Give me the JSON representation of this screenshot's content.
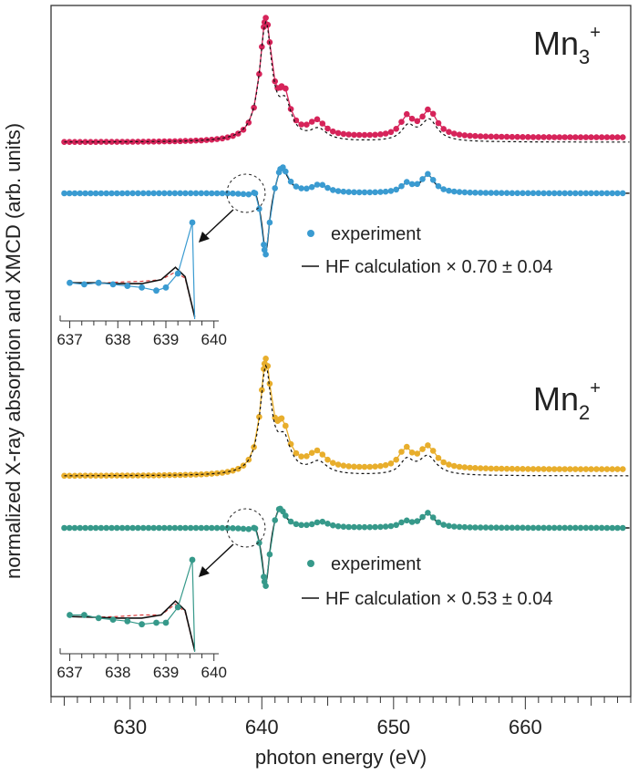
{
  "chart_data": {
    "type": "line",
    "xlabel": "photon energy (eV)",
    "ylabel": "normalized X-ray absorption and XMCD (arb. units)",
    "xlim": [
      624,
      668
    ],
    "x_ticks": [
      630,
      640,
      650,
      660
    ],
    "x_minor_step": 1,
    "colors": {
      "mn3_xas": "#d6245a",
      "mn3_xmcd": "#3a9bd1",
      "mn2_xas": "#e8ae2c",
      "mn2_xmcd": "#36998a",
      "calc": "#111111",
      "calc_alt": "#d83a3a"
    },
    "panels": [
      {
        "id": "mn3",
        "label_base": "Mn",
        "label_sub": "3",
        "label_sup": "+",
        "xas": {
          "color_key": "mn3_xas",
          "peaks": [
            {
              "x": 640.3,
              "a": 1.0,
              "w": 0.55
            },
            {
              "x": 641.7,
              "a": 0.3,
              "w": 0.5
            },
            {
              "x": 644.2,
              "a": 0.12,
              "w": 0.7
            },
            {
              "x": 651.0,
              "a": 0.16,
              "w": 0.55
            },
            {
              "x": 652.7,
              "a": 0.22,
              "w": 0.7
            }
          ],
          "step": {
            "edge": 640.8,
            "height": 0.04
          },
          "calc_peaks": [
            {
              "x": 640.3,
              "a": 0.98,
              "w": 0.58
            },
            {
              "x": 641.8,
              "a": 0.25,
              "w": 0.55
            },
            {
              "x": 644.3,
              "a": 0.09,
              "w": 0.75
            },
            {
              "x": 651.1,
              "a": 0.12,
              "w": 0.6
            },
            {
              "x": 652.7,
              "a": 0.18,
              "w": 0.75
            }
          ]
        },
        "xmcd": {
          "color_key": "mn3_xmcd",
          "peaks": [
            {
              "x": 639.5,
              "a": 0.12,
              "w": 0.25
            },
            {
              "x": 640.3,
              "a": -1.0,
              "w": 0.35
            },
            {
              "x": 641.5,
              "a": 0.45,
              "w": 0.6
            },
            {
              "x": 644.4,
              "a": 0.12,
              "w": 0.7
            },
            {
              "x": 651.0,
              "a": 0.13,
              "w": 0.5
            },
            {
              "x": 652.6,
              "a": 0.27,
              "w": 0.6
            }
          ],
          "calc_scale_text": "HF calculation × 0.70 ± 0.04",
          "legend_exp": "experiment",
          "inset_points": [
            {
              "x": 637.0,
              "y": 0.04
            },
            {
              "x": 637.3,
              "y": 0.03
            },
            {
              "x": 637.6,
              "y": 0.04
            },
            {
              "x": 637.9,
              "y": 0.03
            },
            {
              "x": 638.2,
              "y": 0.02
            },
            {
              "x": 638.5,
              "y": 0.01
            },
            {
              "x": 638.8,
              "y": -0.01
            },
            {
              "x": 639.0,
              "y": 0.01
            },
            {
              "x": 639.25,
              "y": 0.1
            },
            {
              "x": 639.55,
              "y": 0.45
            }
          ],
          "inset_calc": [
            {
              "x": 637.0,
              "y": 0.04
            },
            {
              "x": 637.5,
              "y": 0.04
            },
            {
              "x": 638.0,
              "y": 0.035
            },
            {
              "x": 638.5,
              "y": 0.035
            },
            {
              "x": 638.9,
              "y": 0.06
            },
            {
              "x": 639.2,
              "y": 0.14
            },
            {
              "x": 639.4,
              "y": 0.08
            },
            {
              "x": 639.6,
              "y": -0.18
            }
          ],
          "inset_calc_alt": [
            {
              "x": 637.0,
              "y": 0.04
            },
            {
              "x": 637.5,
              "y": 0.035
            },
            {
              "x": 638.0,
              "y": 0.045
            },
            {
              "x": 638.5,
              "y": 0.05
            },
            {
              "x": 638.9,
              "y": 0.06
            },
            {
              "x": 639.2,
              "y": 0.11
            },
            {
              "x": 639.4,
              "y": 0.07
            },
            {
              "x": 639.6,
              "y": -0.18
            }
          ]
        }
      },
      {
        "id": "mn2",
        "label_base": "Mn",
        "label_sub": "2",
        "label_sup": "+",
        "xas": {
          "color_key": "mn2_xas",
          "peaks": [
            {
              "x": 640.3,
              "a": 1.0,
              "w": 0.5
            },
            {
              "x": 641.6,
              "a": 0.33,
              "w": 0.55
            },
            {
              "x": 644.2,
              "a": 0.14,
              "w": 0.75
            },
            {
              "x": 650.9,
              "a": 0.17,
              "w": 0.55
            },
            {
              "x": 652.6,
              "a": 0.2,
              "w": 0.75
            }
          ],
          "step": {
            "edge": 640.8,
            "height": 0.06
          },
          "calc_peaks": [
            {
              "x": 640.3,
              "a": 0.96,
              "w": 0.52
            },
            {
              "x": 641.7,
              "a": 0.27,
              "w": 0.6
            },
            {
              "x": 644.3,
              "a": 0.11,
              "w": 0.8
            },
            {
              "x": 651.0,
              "a": 0.13,
              "w": 0.6
            },
            {
              "x": 652.6,
              "a": 0.17,
              "w": 0.8
            }
          ]
        },
        "xmcd": {
          "color_key": "mn2_xmcd",
          "peaks": [
            {
              "x": 639.5,
              "a": 0.1,
              "w": 0.25
            },
            {
              "x": 640.3,
              "a": -0.9,
              "w": 0.35
            },
            {
              "x": 641.3,
              "a": 0.35,
              "w": 0.6
            },
            {
              "x": 644.5,
              "a": 0.08,
              "w": 0.7
            },
            {
              "x": 650.9,
              "a": 0.08,
              "w": 0.5
            },
            {
              "x": 652.6,
              "a": 0.2,
              "w": 0.6
            }
          ],
          "calc_scale_text": "HF calculation × 0.53 ± 0.04",
          "legend_exp": "experiment",
          "inset_points": [
            {
              "x": 637.0,
              "y": 0.05
            },
            {
              "x": 637.3,
              "y": 0.05
            },
            {
              "x": 637.6,
              "y": 0.03
            },
            {
              "x": 637.9,
              "y": 0.02
            },
            {
              "x": 638.2,
              "y": 0.01
            },
            {
              "x": 638.5,
              "y": -0.01
            },
            {
              "x": 638.8,
              "y": 0.0
            },
            {
              "x": 639.0,
              "y": 0.0
            },
            {
              "x": 639.25,
              "y": 0.1
            },
            {
              "x": 639.55,
              "y": 0.45
            }
          ],
          "inset_calc": [
            {
              "x": 637.0,
              "y": 0.04
            },
            {
              "x": 637.5,
              "y": 0.035
            },
            {
              "x": 638.0,
              "y": 0.03
            },
            {
              "x": 638.5,
              "y": 0.03
            },
            {
              "x": 638.9,
              "y": 0.05
            },
            {
              "x": 639.2,
              "y": 0.14
            },
            {
              "x": 639.4,
              "y": 0.08
            },
            {
              "x": 639.6,
              "y": -0.18
            }
          ],
          "inset_calc_alt": [
            {
              "x": 637.0,
              "y": 0.04
            },
            {
              "x": 637.5,
              "y": 0.035
            },
            {
              "x": 638.0,
              "y": 0.04
            },
            {
              "x": 638.5,
              "y": 0.05
            },
            {
              "x": 638.9,
              "y": 0.05
            },
            {
              "x": 639.2,
              "y": 0.12
            },
            {
              "x": 639.4,
              "y": 0.07
            },
            {
              "x": 639.6,
              "y": -0.18
            }
          ]
        }
      }
    ],
    "inset": {
      "xlim": [
        636.8,
        640.1
      ],
      "ticks": [
        637,
        638,
        639,
        640
      ]
    }
  }
}
